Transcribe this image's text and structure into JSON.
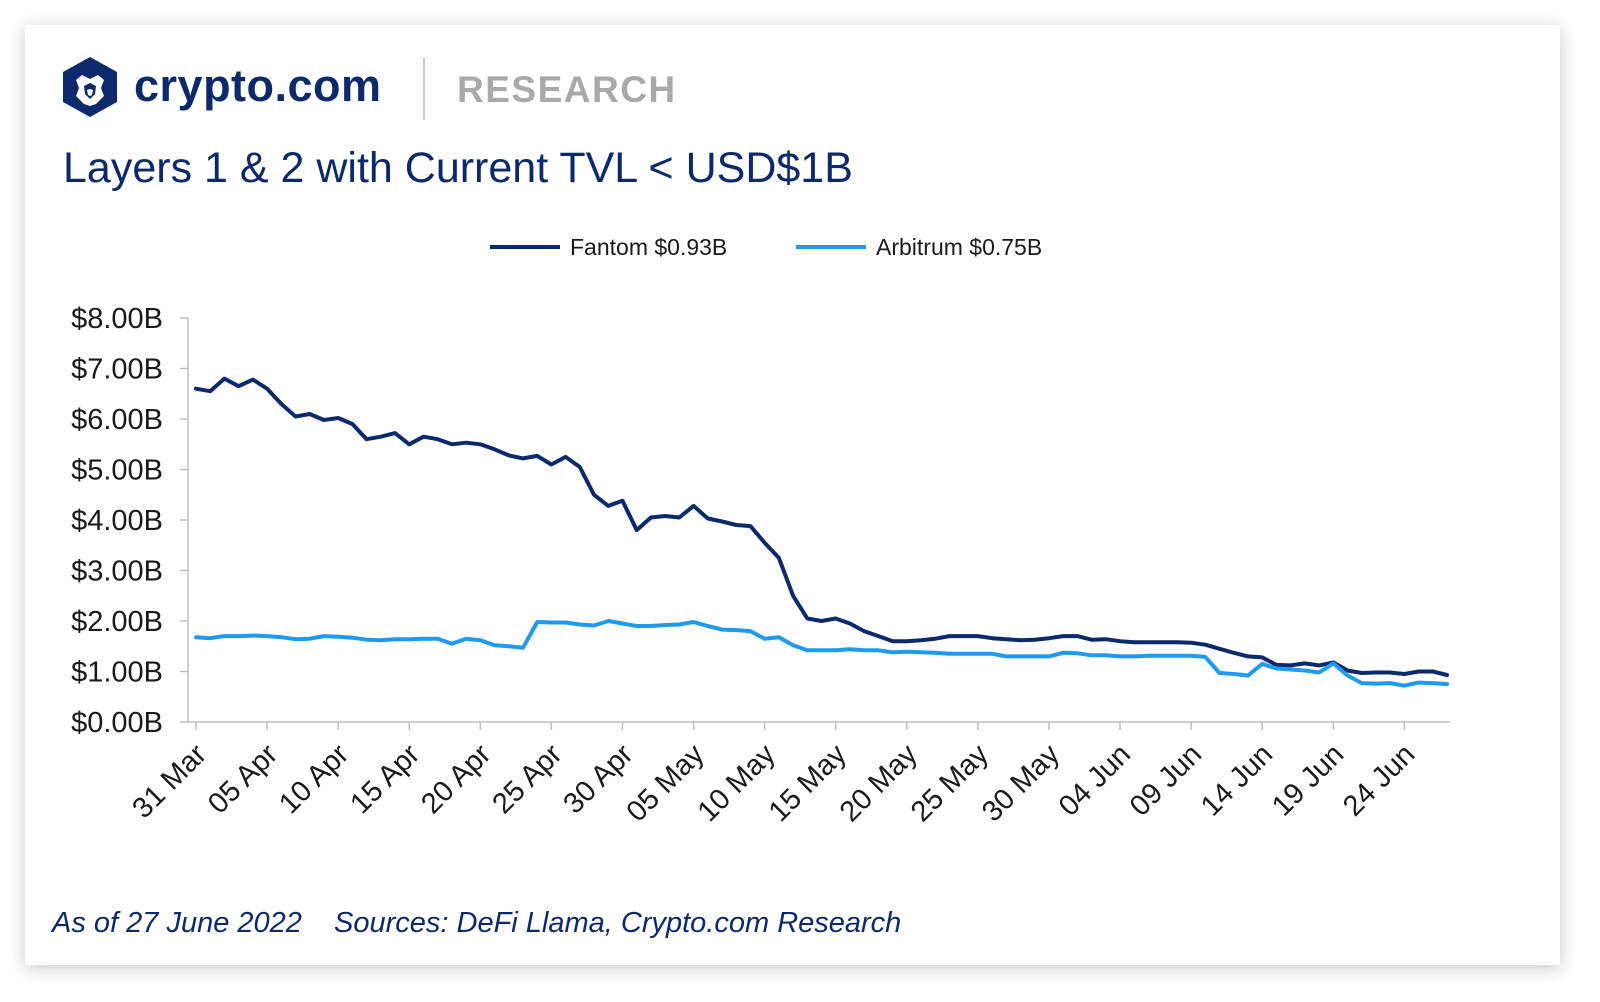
{
  "header": {
    "brand": "crypto.com",
    "section": "RESEARCH",
    "title": "Layers 1 & 2 with Current TVL < USD$1B"
  },
  "footer": {
    "as_of": "As of 27 June 2022",
    "sources": "Sources: DeFi Llama, Crypto.com Research"
  },
  "colors": {
    "brand_navy": "#0c2a6b",
    "fantom": "#0c2a6b",
    "arbitrum": "#1e9bf0",
    "muted_gray": "#a9a9a9"
  },
  "icons": {
    "logo": "crypto-com-lion-shield-icon"
  },
  "chart_data": {
    "type": "line",
    "title": "Layers 1 & 2 with Current TVL < USD$1B",
    "xlabel": "",
    "ylabel": "",
    "ylim": [
      0,
      8
    ],
    "yticks": [
      "$0.00B",
      "$1.00B",
      "$2.00B",
      "$3.00B",
      "$4.00B",
      "$5.00B",
      "$6.00B",
      "$7.00B",
      "$8.00B"
    ],
    "x_start": "2022-03-31",
    "x_end": "2022-06-27",
    "xtick_labels": [
      "31 Mar",
      "05 Apr",
      "10 Apr",
      "15 Apr",
      "20 Apr",
      "25 Apr",
      "30 Apr",
      "05 May",
      "10 May",
      "15 May",
      "20 May",
      "25 May",
      "30 May",
      "04 Jun",
      "09 Jun",
      "14 Jun",
      "19 Jun",
      "24 Jun"
    ],
    "xtick_dates": [
      "2022-03-31",
      "2022-04-05",
      "2022-04-10",
      "2022-04-15",
      "2022-04-20",
      "2022-04-25",
      "2022-04-30",
      "2022-05-05",
      "2022-05-10",
      "2022-05-15",
      "2022-05-20",
      "2022-05-25",
      "2022-05-30",
      "2022-06-04",
      "2022-06-09",
      "2022-06-14",
      "2022-06-19",
      "2022-06-24"
    ],
    "grid": false,
    "legend_position": "top-center",
    "series": [
      {
        "name": "Fantom $0.93B",
        "color": "#0c2a6b",
        "values": [
          6.6,
          6.55,
          6.8,
          6.65,
          6.78,
          6.6,
          6.3,
          6.05,
          6.1,
          5.98,
          6.02,
          5.9,
          5.6,
          5.65,
          5.72,
          5.5,
          5.65,
          5.6,
          5.5,
          5.53,
          5.5,
          5.4,
          5.28,
          5.22,
          5.27,
          5.1,
          5.25,
          5.05,
          4.5,
          4.28,
          4.38,
          3.8,
          4.05,
          4.08,
          4.05,
          4.28,
          4.03,
          3.97,
          3.9,
          3.88,
          3.55,
          3.25,
          2.5,
          2.05,
          2.0,
          2.05,
          1.95,
          1.8,
          1.7,
          1.6,
          1.6,
          1.62,
          1.65,
          1.7,
          1.7,
          1.7,
          1.66,
          1.64,
          1.62,
          1.63,
          1.66,
          1.7,
          1.7,
          1.63,
          1.64,
          1.6,
          1.58,
          1.58,
          1.58,
          1.58,
          1.57,
          1.53,
          1.45,
          1.37,
          1.3,
          1.28,
          1.13,
          1.12,
          1.16,
          1.12,
          1.18,
          1.02,
          0.97,
          0.98,
          0.98,
          0.95,
          1.0,
          1.0,
          0.93
        ]
      },
      {
        "name": "Arbitrum $0.75B",
        "color": "#1e9bf0",
        "values": [
          1.68,
          1.66,
          1.7,
          1.7,
          1.71,
          1.7,
          1.68,
          1.64,
          1.65,
          1.7,
          1.69,
          1.67,
          1.63,
          1.62,
          1.64,
          1.64,
          1.65,
          1.65,
          1.55,
          1.65,
          1.62,
          1.52,
          1.5,
          1.47,
          1.98,
          1.97,
          1.97,
          1.93,
          1.91,
          2.0,
          1.95,
          1.9,
          1.9,
          1.92,
          1.93,
          1.98,
          1.9,
          1.83,
          1.82,
          1.8,
          1.65,
          1.68,
          1.52,
          1.42,
          1.42,
          1.42,
          1.44,
          1.42,
          1.42,
          1.38,
          1.39,
          1.38,
          1.37,
          1.35,
          1.35,
          1.35,
          1.35,
          1.3,
          1.3,
          1.3,
          1.3,
          1.37,
          1.36,
          1.32,
          1.32,
          1.3,
          1.3,
          1.31,
          1.31,
          1.31,
          1.31,
          1.29,
          0.97,
          0.95,
          0.92,
          1.15,
          1.06,
          1.04,
          1.02,
          0.98,
          1.16,
          0.92,
          0.77,
          0.76,
          0.77,
          0.72,
          0.78,
          0.77,
          0.75
        ]
      }
    ]
  }
}
